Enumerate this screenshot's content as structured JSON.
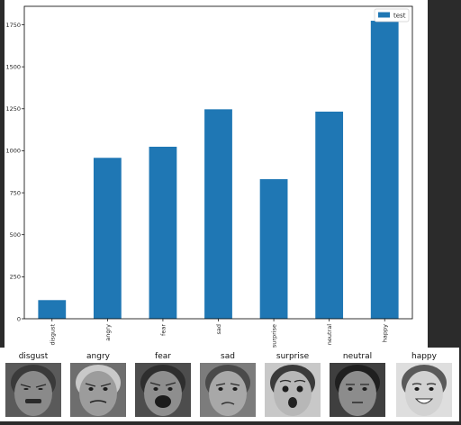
{
  "chart_data": {
    "type": "bar",
    "categories": [
      "disgust",
      "angry",
      "fear",
      "sad",
      "surprise",
      "neutral",
      "happy"
    ],
    "series": [
      {
        "name": "test",
        "values": [
          111,
          958,
          1024,
          1247,
          831,
          1233,
          1774
        ],
        "color": "#1f77b4"
      }
    ],
    "yticks": [
      0,
      250,
      500,
      750,
      1000,
      1250,
      1500,
      1750
    ],
    "ylim": [
      0,
      1860
    ],
    "xlabel": "",
    "ylabel": "",
    "title": "",
    "grid": false,
    "legend_position": "top-right"
  },
  "faces": [
    {
      "label": "disgust",
      "icon": "grimacing-face-icon"
    },
    {
      "label": "angry",
      "icon": "angry-face-icon"
    },
    {
      "label": "fear",
      "icon": "screaming-face-icon"
    },
    {
      "label": "sad",
      "icon": "sad-face-icon"
    },
    {
      "label": "surprise",
      "icon": "surprised-face-icon"
    },
    {
      "label": "neutral",
      "icon": "neutral-face-icon"
    },
    {
      "label": "happy",
      "icon": "smiling-face-icon"
    }
  ]
}
